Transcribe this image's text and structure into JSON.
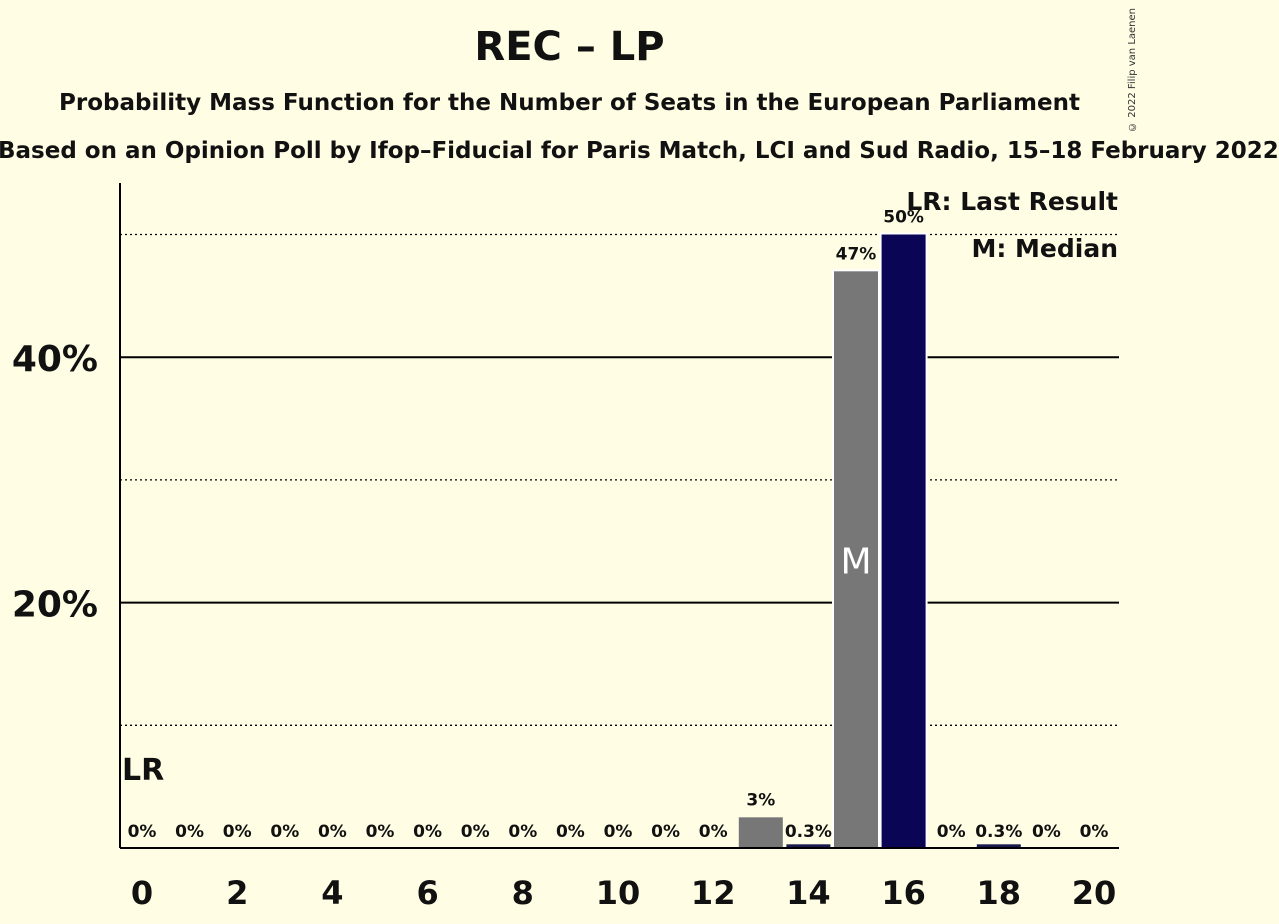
{
  "chart_data": {
    "type": "bar",
    "title": "REC – LP",
    "subtitle": "Probability Mass Function for the Number of Seats in the European Parliament",
    "source": "Based on an Opinion Poll by Ifop–Fiducial for Paris Match, LCI and Sud Radio, 15–18 February 2022",
    "copyright": "© 2022 Filip van Laenen",
    "x": [
      0,
      1,
      2,
      3,
      4,
      5,
      6,
      7,
      8,
      9,
      10,
      11,
      12,
      13,
      14,
      15,
      16,
      17,
      18,
      19,
      20
    ],
    "values": [
      0,
      0,
      0,
      0,
      0,
      0,
      0,
      0,
      0,
      0,
      0,
      0,
      0,
      2.5,
      0.3,
      47,
      50,
      0,
      0.3,
      0,
      0
    ],
    "value_labels": [
      "0%",
      "0%",
      "0%",
      "0%",
      "0%",
      "0%",
      "0%",
      "0%",
      "0%",
      "0%",
      "0%",
      "0%",
      "0%",
      "3%",
      "0.3%",
      "47%",
      "50%",
      "0%",
      "0.3%",
      "0%",
      "0%"
    ],
    "x_tick_labels": [
      "0",
      "2",
      "4",
      "6",
      "8",
      "10",
      "12",
      "14",
      "16",
      "18",
      "20"
    ],
    "y_tick_labels": [
      "20%",
      "40%"
    ],
    "ylim": [
      0,
      54
    ],
    "median_seat": 15,
    "median_marker": "M",
    "last_result_seat": 0,
    "last_result_marker": "LR",
    "legend": {
      "last_result": "LR: Last Result",
      "median": "M: Median"
    },
    "colors": {
      "background": "#fffde4",
      "bar_default": "#777777",
      "bar_highlight": "#0a0555",
      "bar_small": "#1a1a50",
      "axis": "#000000"
    }
  }
}
